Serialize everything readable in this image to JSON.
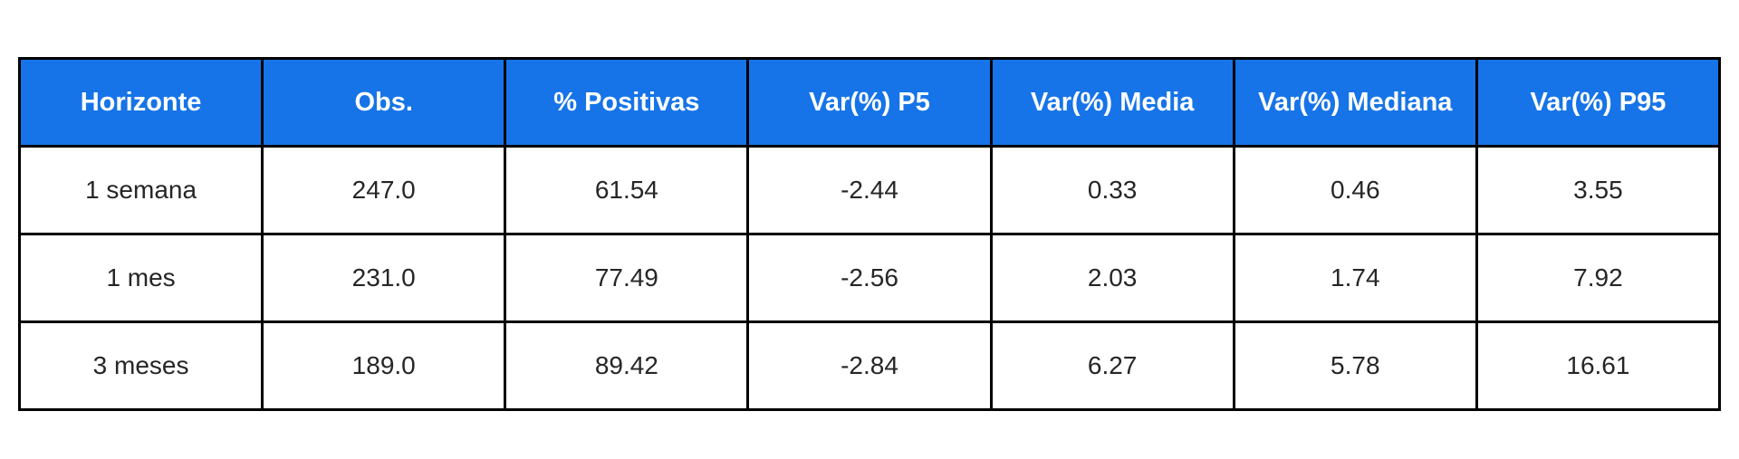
{
  "chart_data": {
    "type": "table",
    "columns": [
      "Horizonte",
      "Obs.",
      "% Positivas",
      "Var(%) P5",
      "Var(%) Media",
      "Var(%) Mediana",
      "Var(%) P95"
    ],
    "rows": [
      [
        "1 semana",
        "247.0",
        "61.54",
        "-2.44",
        "0.33",
        "0.46",
        "3.55"
      ],
      [
        "1 mes",
        "231.0",
        "77.49",
        "-2.56",
        "2.03",
        "1.74",
        "7.92"
      ],
      [
        "3 meses",
        "189.0",
        "89.42",
        "-2.84",
        "6.27",
        "5.78",
        "16.61"
      ]
    ]
  },
  "colors": {
    "header_bg": "#1674E8",
    "header_text": "#FFFFFF",
    "body_text": "#262626",
    "border": "#000000",
    "page_bg": "#FFFFFF"
  }
}
